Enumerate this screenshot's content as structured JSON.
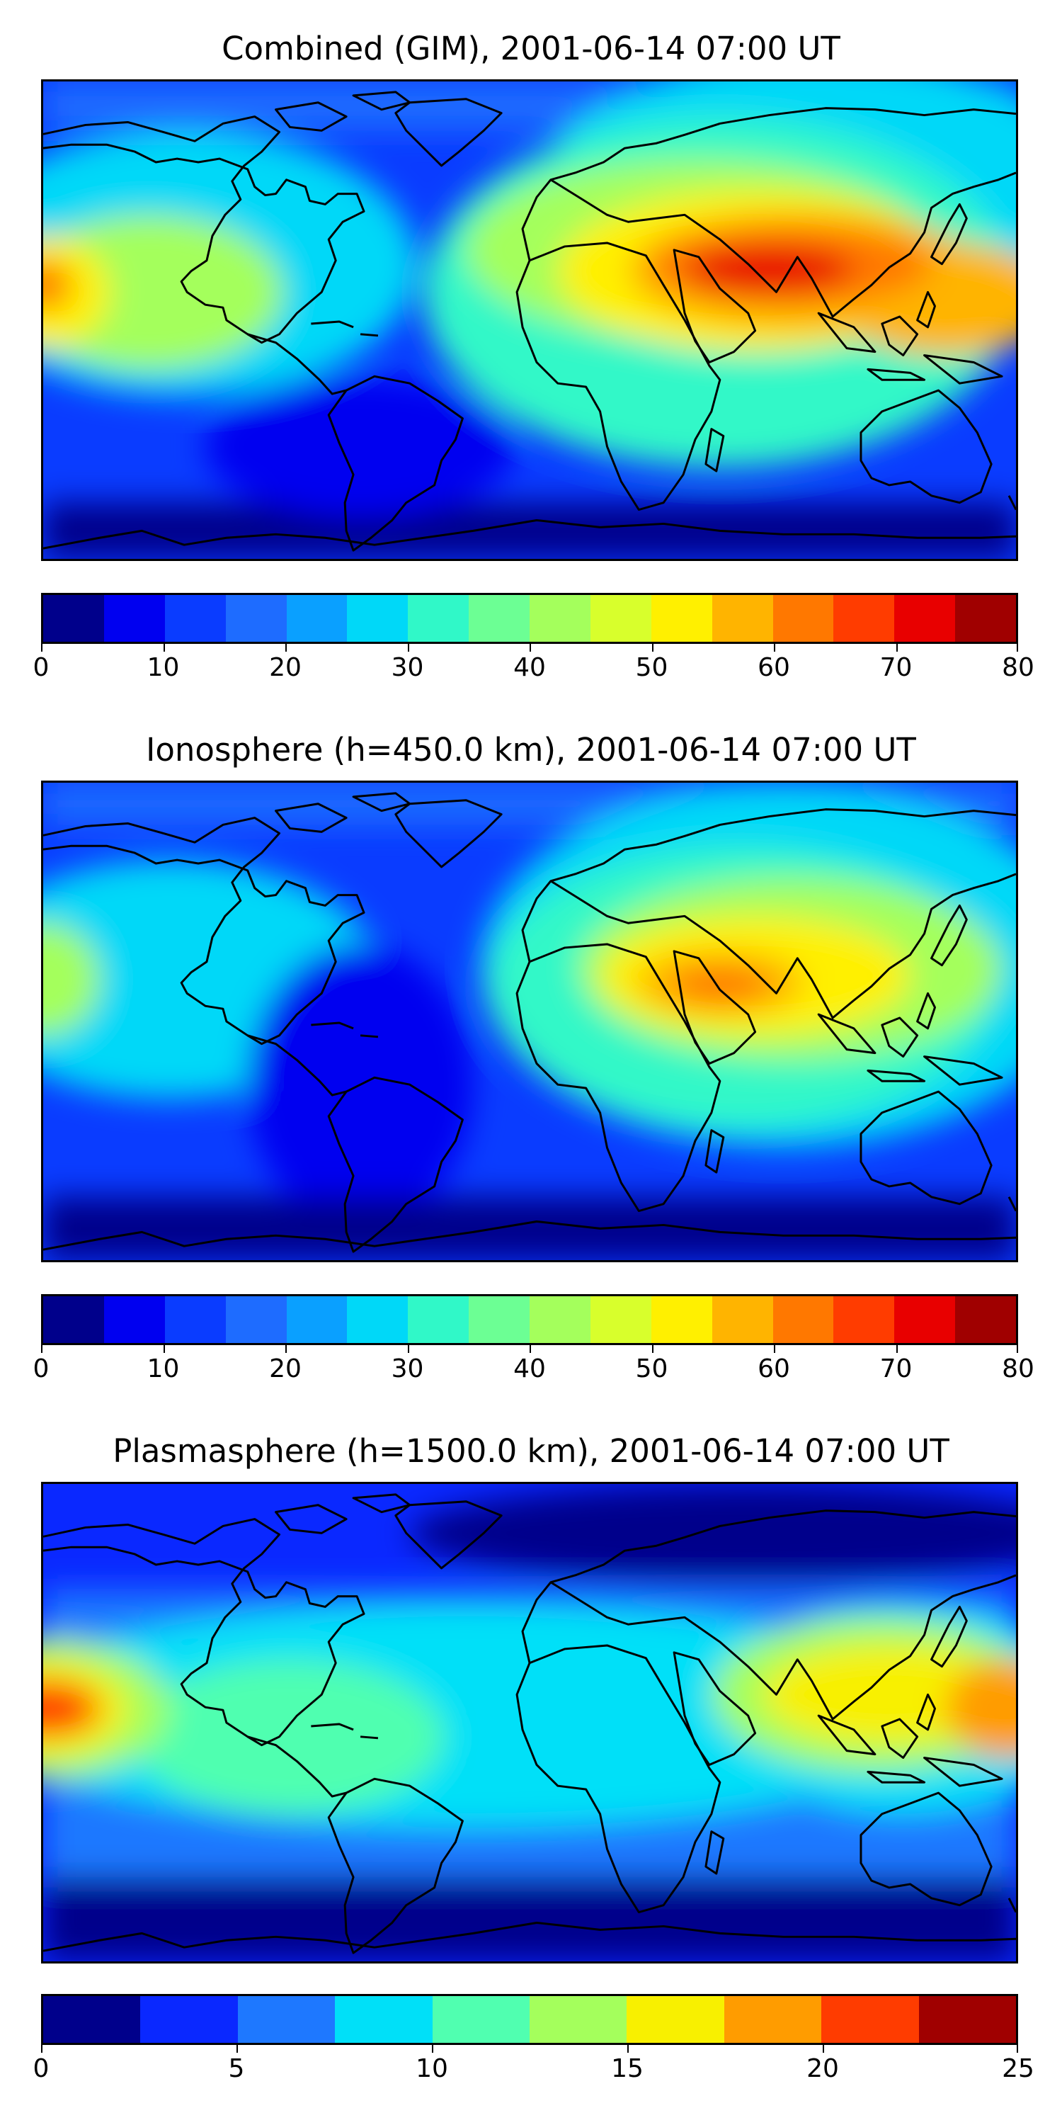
{
  "panels": [
    {
      "title": "Combined (GIM), 2001-06-14 07:00 UT",
      "map_alt": "Global TEC contour map, combined ionosphere and plasmasphere",
      "colorbar": {
        "min": 0,
        "max": 80,
        "step": 5,
        "tick_labels": [
          "0",
          "10",
          "20",
          "30",
          "40",
          "50",
          "60",
          "70",
          "80"
        ],
        "colors": [
          "#00008b",
          "#0000f0",
          "#0a3cff",
          "#1e6cff",
          "#0aa0ff",
          "#00d8f8",
          "#30f8c8",
          "#6cff94",
          "#a4ff5c",
          "#d8ff2c",
          "#fff000",
          "#ffb400",
          "#ff7800",
          "#ff3c00",
          "#e80000",
          "#a00000"
        ]
      }
    },
    {
      "title": "Ionosphere  (h=450.0 km), 2001-06-14 07:00 UT",
      "map_alt": "Global TEC contour map, ionosphere component",
      "colorbar": {
        "min": 0,
        "max": 80,
        "step": 5,
        "tick_labels": [
          "0",
          "10",
          "20",
          "30",
          "40",
          "50",
          "60",
          "70",
          "80"
        ],
        "colors": [
          "#00008b",
          "#0000f0",
          "#0a3cff",
          "#1e6cff",
          "#0aa0ff",
          "#00d8f8",
          "#30f8c8",
          "#6cff94",
          "#a4ff5c",
          "#d8ff2c",
          "#fff000",
          "#ffb400",
          "#ff7800",
          "#ff3c00",
          "#e80000",
          "#a00000"
        ]
      }
    },
    {
      "title": "Plasmasphere (h=1500.0 km), 2001-06-14 07:00 UT",
      "map_alt": "Global TEC contour map, plasmasphere component",
      "colorbar": {
        "min": 0,
        "max": 25,
        "step": 2.5,
        "tick_labels": [
          "0",
          "5",
          "10",
          "15",
          "20",
          "25"
        ],
        "colors": [
          "#00008b",
          "#0a28ff",
          "#1e78ff",
          "#00e0f8",
          "#50ffb0",
          "#a4ff5c",
          "#f8f000",
          "#ff9c00",
          "#ff3c00",
          "#a00000"
        ]
      }
    }
  ]
}
